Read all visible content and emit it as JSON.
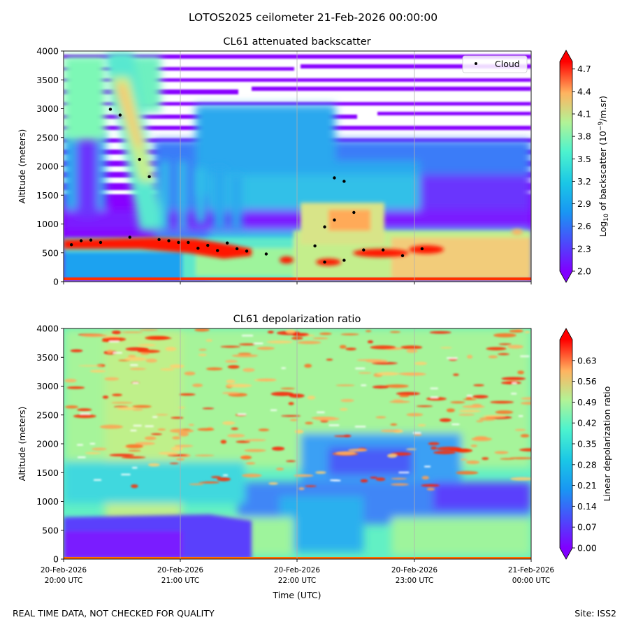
{
  "figure": {
    "title": "LOTOS2025 ceilometer 21-Feb-2026 00:00:00",
    "footer_left": "REAL TIME DATA, NOT CHECKED FOR QUALITY",
    "footer_right": "Site: ISS2"
  },
  "chart_data": [
    {
      "type": "heatmap",
      "title": "CL61 attenuated backscatter",
      "xlabel": "",
      "ylabel": "Altitude (meters)",
      "ylim": [
        0,
        4000
      ],
      "yticks": [
        0,
        500,
        1000,
        1500,
        2000,
        2500,
        3000,
        3500,
        4000
      ],
      "x_range_utc": [
        "2026-02-20 20:00",
        "2026-02-21 00:00"
      ],
      "vertical_gridlines_utc": [
        "21:00",
        "22:00",
        "23:00"
      ],
      "colormap": "rainbow",
      "colorbar_label": "Log10 of backscatter (10^-9/m.sr)",
      "colorbar_label_parts": [
        "Log",
        "10",
        " of backscatter (10",
        "−9",
        "/m.sr)"
      ],
      "colorbar_range": [
        2.0,
        4.8
      ],
      "colorbar_ticks": [
        "2.0",
        "2.3",
        "2.6",
        "2.9",
        "3.2",
        "3.5",
        "3.8",
        "4.1",
        "4.4",
        "4.7"
      ],
      "legend": {
        "label": "Cloud",
        "placement": "upper right"
      },
      "series": [
        {
          "name": "Cloud",
          "marker": "dot",
          "color": "#000000",
          "points": [
            [
              "20:04",
              640
            ],
            [
              "20:09",
              710
            ],
            [
              "20:14",
              720
            ],
            [
              "20:19",
              680
            ],
            [
              "20:24",
              2990
            ],
            [
              "20:29",
              2890
            ],
            [
              "20:34",
              770
            ],
            [
              "20:39",
              2120
            ],
            [
              "20:44",
              1820
            ],
            [
              "20:49",
              730
            ],
            [
              "20:54",
              710
            ],
            [
              "20:59",
              680
            ],
            [
              "21:04",
              680
            ],
            [
              "21:09",
              580
            ],
            [
              "21:14",
              630
            ],
            [
              "21:19",
              540
            ],
            [
              "21:24",
              670
            ],
            [
              "21:29",
              570
            ],
            [
              "21:34",
              530
            ],
            [
              "21:44",
              480
            ],
            [
              "22:09",
              620
            ],
            [
              "22:14",
              340
            ],
            [
              "22:14",
              950
            ],
            [
              "22:19",
              1800
            ],
            [
              "22:19",
              1070
            ],
            [
              "22:24",
              1740
            ],
            [
              "22:24",
              370
            ],
            [
              "22:29",
              1200
            ],
            [
              "22:34",
              550
            ],
            [
              "22:44",
              550
            ],
            [
              "22:54",
              450
            ],
            [
              "23:04",
              570
            ]
          ]
        }
      ]
    },
    {
      "type": "heatmap",
      "title": "CL61 depolarization ratio",
      "xlabel": "Time (UTC)",
      "ylabel": "Altitude (meters)",
      "ylim": [
        0,
        4000
      ],
      "yticks": [
        0,
        500,
        1000,
        1500,
        2000,
        2500,
        3000,
        3500,
        4000
      ],
      "xtick_labels": [
        [
          "20-Feb-2026",
          "20:00 UTC"
        ],
        [
          "20-Feb-2026",
          "21:00 UTC"
        ],
        [
          "20-Feb-2026",
          "22:00 UTC"
        ],
        [
          "20-Feb-2026",
          "23:00 UTC"
        ],
        [
          "21-Feb-2026",
          "00:00 UTC"
        ]
      ],
      "vertical_gridlines_utc": [
        "21:00",
        "22:00",
        "23:00"
      ],
      "colormap": "rainbow",
      "colorbar_label": "Linear depolarization ratio",
      "colorbar_range": [
        0.0,
        0.7
      ],
      "colorbar_ticks": [
        "0.00",
        "0.07",
        "0.14",
        "0.21",
        "0.28",
        "0.35",
        "0.42",
        "0.49",
        "0.56",
        "0.63"
      ]
    }
  ]
}
